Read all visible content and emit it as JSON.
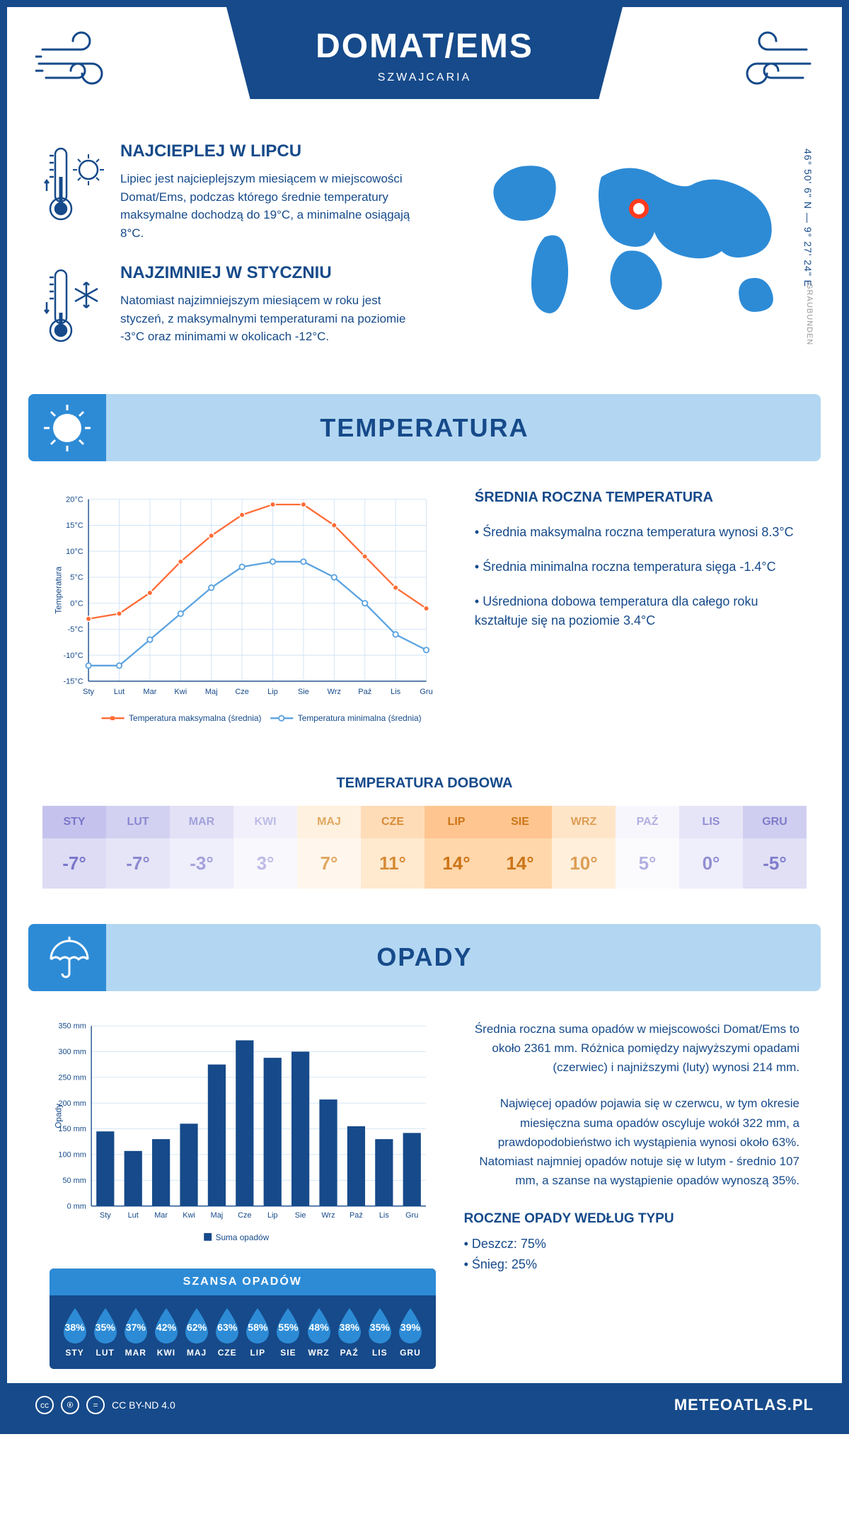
{
  "header": {
    "title": "DOMAT/EMS",
    "subtitle": "SZWAJCARIA"
  },
  "coords": "46° 50' 6\" N — 9° 27' 24\" E",
  "region": "GRAUBUNDEN",
  "intro": {
    "warm": {
      "title": "NAJCIEPLEJ W LIPCU",
      "text": "Lipiec jest najcieplejszym miesiącem w miejscowości Domat/Ems, podczas którego średnie temperatury maksymalne dochodzą do 19°C, a minimalne osiągają 8°C."
    },
    "cold": {
      "title": "NAJZIMNIEJ W STYCZNIU",
      "text": "Natomiast najzimniejszym miesiącem w roku jest styczeń, z maksymalnymi temperaturami na poziomie -3°C oraz minimami w okolicach -12°C."
    }
  },
  "temp_section": {
    "title": "TEMPERATURA",
    "info_title": "ŚREDNIA ROCZNA TEMPERATURA",
    "bullets": [
      "• Średnia maksymalna roczna temperatura wynosi 8.3°C",
      "• Średnia minimalna roczna temperatura sięga -1.4°C",
      "• Uśredniona dobowa temperatura dla całego roku kształtuje się na poziomie 3.4°C"
    ],
    "chart": {
      "type": "line",
      "months": [
        "Sty",
        "Lut",
        "Mar",
        "Kwi",
        "Maj",
        "Cze",
        "Lip",
        "Sie",
        "Wrz",
        "Paź",
        "Lis",
        "Gru"
      ],
      "max_values": [
        -3,
        -2,
        2,
        8,
        13,
        17,
        19,
        19,
        15,
        9,
        3,
        -1
      ],
      "min_values": [
        -12,
        -12,
        -7,
        -2,
        3,
        7,
        8,
        8,
        5,
        0,
        -6,
        -9
      ],
      "ylim": [
        -15,
        20
      ],
      "ytick_step": 5,
      "max_color": "#ff6b35",
      "min_color": "#5ba3e0",
      "grid_color": "#cfe3f5",
      "axis_color": "#164a8a",
      "ylabel": "Temperatura",
      "legend_max": "Temperatura maksymalna (średnia)",
      "legend_min": "Temperatura minimalna (średnia)",
      "label_fontsize": 12
    }
  },
  "dobowa": {
    "title": "TEMPERATURA DOBOWA",
    "months": [
      "STY",
      "LUT",
      "MAR",
      "KWI",
      "MAJ",
      "CZE",
      "LIP",
      "SIE",
      "WRZ",
      "PAŹ",
      "LIS",
      "GRU"
    ],
    "values": [
      "-7°",
      "-7°",
      "-3°",
      "3°",
      "7°",
      "11°",
      "14°",
      "14°",
      "10°",
      "5°",
      "0°",
      "-5°"
    ],
    "head_colors": [
      "#c5c3ed",
      "#d3d1f1",
      "#e2e1f6",
      "#f2f1fb",
      "#fff1e0",
      "#ffdcb8",
      "#ffc590",
      "#ffc590",
      "#ffe5c8",
      "#f7f6fc",
      "#e6e5f7",
      "#d0cef0"
    ],
    "val_colors": [
      "#dddcf4",
      "#e6e5f7",
      "#efeefb",
      "#f8f8fd",
      "#fff7ed",
      "#ffe9cf",
      "#ffd7ab",
      "#ffd7ab",
      "#ffefdb",
      "#fbfbfe",
      "#efeefb",
      "#e1e0f5"
    ],
    "text_colors": [
      "#7a76c9",
      "#8b88d0",
      "#a4a2dc",
      "#bdbbe7",
      "#e0a75f",
      "#d68b36",
      "#cc7518",
      "#cc7518",
      "#dd9e54",
      "#b2b0e1",
      "#918ed3",
      "#7f7ccb"
    ]
  },
  "precip_section": {
    "title": "OPADY",
    "chart": {
      "type": "bar",
      "months": [
        "Sty",
        "Lut",
        "Mar",
        "Kwi",
        "Maj",
        "Cze",
        "Lip",
        "Sie",
        "Wrz",
        "Paź",
        "Lis",
        "Gru"
      ],
      "values": [
        145,
        107,
        130,
        160,
        275,
        322,
        288,
        300,
        207,
        155,
        130,
        142
      ],
      "ylim": [
        0,
        350
      ],
      "ytick_step": 50,
      "bar_color": "#164a8a",
      "grid_color": "#cfe3f5",
      "ylabel": "Opady",
      "legend": "Suma opadów"
    },
    "text1": "Średnia roczna suma opadów w miejscowości Domat/Ems to około 2361 mm. Różnica pomiędzy najwyższymi opadami (czerwiec) i najniższymi (luty) wynosi 214 mm.",
    "text2": "Najwięcej opadów pojawia się w czerwcu, w tym okresie miesięczna suma opadów oscyluje wokół 322 mm, a prawdopodobieństwo ich wystąpienia wynosi około 63%. Natomiast najmniej opadów notuje się w lutym - średnio 107 mm, a szanse na wystąpienie opadów wynoszą 35%.",
    "type_title": "ROCZNE OPADY WEDŁUG TYPU",
    "types": [
      "• Deszcz: 75%",
      "• Śnieg: 25%"
    ]
  },
  "chance": {
    "title": "SZANSA OPADÓW",
    "months": [
      "STY",
      "LUT",
      "MAR",
      "KWI",
      "MAJ",
      "CZE",
      "LIP",
      "SIE",
      "WRZ",
      "PAŹ",
      "LIS",
      "GRU"
    ],
    "values": [
      "38%",
      "35%",
      "37%",
      "42%",
      "62%",
      "63%",
      "58%",
      "55%",
      "48%",
      "38%",
      "35%",
      "39%"
    ],
    "drop_color": "#2d8bd6"
  },
  "footer": {
    "license": "CC BY-ND 4.0",
    "site": "METEOATLAS.PL"
  }
}
